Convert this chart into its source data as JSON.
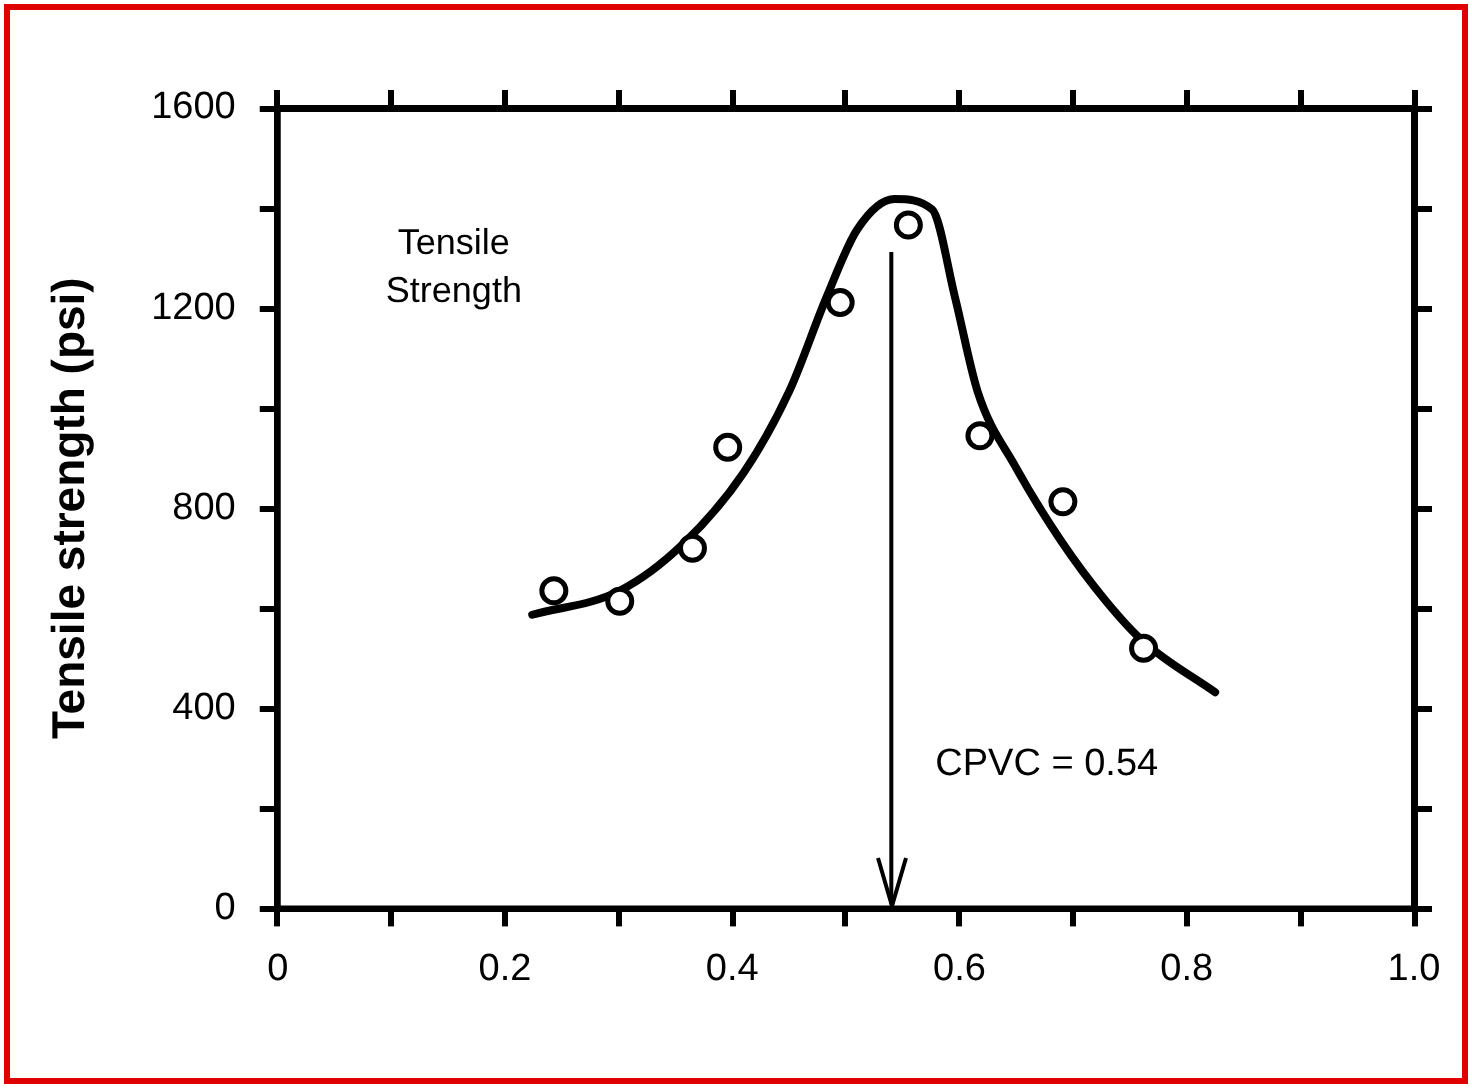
{
  "chart_data": {
    "type": "scatter",
    "ylabel": "Tensile strength (psi)",
    "xlim": [
      0,
      1.0
    ],
    "xticks": [
      0,
      {
        "value": 0.1,
        "label": null
      },
      0.2,
      {
        "value": 0.3,
        "label": null
      },
      0.4,
      {
        "value": 0.5,
        "label": null
      },
      0.6,
      {
        "value": 0.7,
        "label": null
      },
      0.8,
      {
        "value": 0.9,
        "label": null
      },
      {
        "value": 1.0,
        "label": "1.0"
      }
    ],
    "ylim": [
      0,
      1600
    ],
    "yticks": [
      0,
      {
        "value": 200,
        "label": null
      },
      400,
      {
        "value": 600,
        "label": null
      },
      800,
      {
        "value": 1000,
        "label": null
      },
      1200,
      {
        "value": 1400,
        "label": null
      },
      1600
    ],
    "grid": false,
    "legend": false,
    "marker": "circle",
    "series": [
      {
        "color": "#000000",
        "x": [
          0.243,
          0.301,
          0.365,
          0.396,
          0.495,
          0.555,
          0.618,
          0.691,
          0.762
        ],
        "values": [
          635,
          614,
          720,
          922,
          1211,
          1366,
          945,
          813,
          520
        ]
      },
      {
        "type": "line",
        "color": "#000000",
        "marker": "none",
        "line_style": "solid",
        "x": [
          0.224,
          0.301,
          0.357,
          0.41,
          0.45,
          0.483,
          0.51,
          0.543,
          0.576,
          0.596,
          0.616,
          0.649,
          0.689,
          0.729,
          0.762,
          0.825
        ],
        "values": [
          587,
          635,
          729,
          871,
          1033,
          1222,
          1357,
          1418,
          1397,
          1222,
          1033,
          884,
          736,
          614,
          533,
          432
        ]
      }
    ],
    "ref_lines": [
      {
        "axis": "x",
        "value": 0.54,
        "label": "CPVC = 0.54",
        "color": "#000000"
      }
    ],
    "annotations": [
      "Tensile\nStrength"
    ]
  }
}
